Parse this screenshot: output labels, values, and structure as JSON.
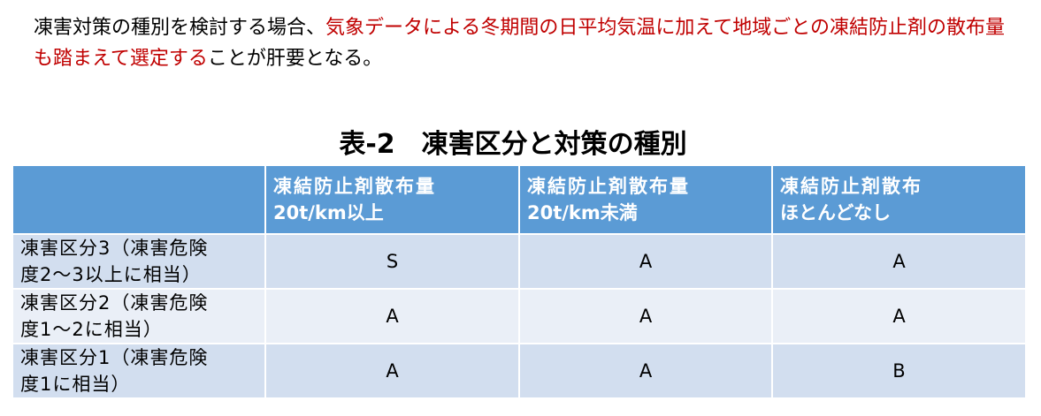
{
  "paragraph": {
    "part1": "凍害対策の種別を検討する場合、",
    "part2_red": "気象データによる冬期間の日平均気温に加えて地域ごとの凍結防止剤の散布量も踏まえて選定する",
    "part3": "ことが肝要となる。"
  },
  "colors": {
    "red_text": "#c00000",
    "header_bg": "#5b9bd5",
    "row_dark": "#d2deef",
    "row_light": "#eaeff7"
  },
  "title": "表-2　凍害区分と対策の種別",
  "table": {
    "headers": [
      {
        "line1": "",
        "line2": ""
      },
      {
        "line1": "凍結防止剤散布量",
        "line2": "20t/km以上"
      },
      {
        "line1": "凍結防止剤散布量",
        "line2": "20t/km未満"
      },
      {
        "line1": "凍結防止剤散布",
        "line2": "ほとんどなし"
      }
    ],
    "rows": [
      {
        "label1": "凍害区分3（凍害危険",
        "label2": "度2～3以上に相当）",
        "values": [
          "S",
          "A",
          "A"
        ]
      },
      {
        "label1": "凍害区分2（凍害危険",
        "label2": "度1～2に相当）",
        "values": [
          "A",
          "A",
          "A"
        ]
      },
      {
        "label1": "凍害区分1（凍害危険",
        "label2": "度1に相当）",
        "values": [
          "A",
          "A",
          "B"
        ]
      }
    ]
  }
}
